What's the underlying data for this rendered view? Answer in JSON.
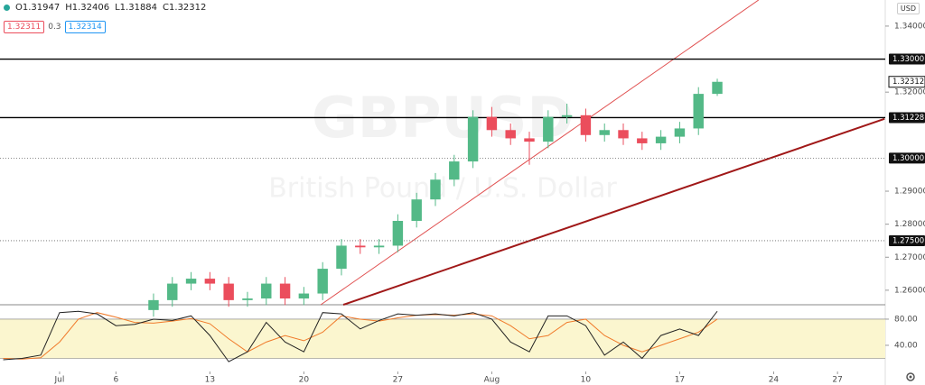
{
  "header": {
    "ohlc": [
      "O1.31947",
      "H1.32406",
      "L1.31884",
      "C1.32312"
    ],
    "sell": "1.32311",
    "spread": "0.3",
    "buy": "1.32314"
  },
  "currency": "USD",
  "chart_data": [
    {
      "type": "candlestick",
      "symbol": "GBPUSD",
      "description": "British Pound / U.S. Dollar",
      "x": [
        5,
        6,
        7,
        8,
        9,
        10,
        11,
        12,
        13,
        14,
        15,
        16,
        17,
        18,
        19,
        20,
        21,
        22,
        23,
        24,
        25,
        26,
        27,
        28,
        29,
        30,
        31,
        32,
        33,
        34,
        35
      ],
      "open": [
        1.254,
        1.257,
        1.262,
        1.2635,
        1.262,
        1.257,
        1.2575,
        1.262,
        1.2575,
        1.259,
        1.2665,
        1.2735,
        1.273,
        1.2735,
        1.281,
        1.2875,
        1.2935,
        1.299,
        1.3125,
        1.3085,
        1.306,
        1.305,
        1.3125,
        1.313,
        1.307,
        1.3085,
        1.306,
        1.3045,
        1.3065,
        1.309,
        1.31947
      ],
      "high": [
        1.259,
        1.264,
        1.2655,
        1.2655,
        1.264,
        1.2595,
        1.264,
        1.264,
        1.261,
        1.2685,
        1.2755,
        1.2755,
        1.2755,
        1.283,
        1.2895,
        1.2955,
        1.301,
        1.3145,
        1.3155,
        1.3105,
        1.308,
        1.3145,
        1.3165,
        1.315,
        1.3105,
        1.3105,
        1.308,
        1.3085,
        1.311,
        1.3215,
        1.32406
      ],
      "low": [
        1.252,
        1.255,
        1.26,
        1.26,
        1.255,
        1.255,
        1.2555,
        1.2555,
        1.2555,
        1.257,
        1.2645,
        1.271,
        1.271,
        1.2715,
        1.279,
        1.2855,
        1.2915,
        1.297,
        1.3065,
        1.304,
        1.298,
        1.303,
        1.3105,
        1.305,
        1.305,
        1.304,
        1.3025,
        1.3025,
        1.3045,
        1.307,
        1.31884
      ],
      "close": [
        1.257,
        1.262,
        1.2635,
        1.262,
        1.257,
        1.2575,
        1.262,
        1.2575,
        1.259,
        1.2665,
        1.2735,
        1.273,
        1.2735,
        1.281,
        1.2875,
        1.2935,
        1.299,
        1.3125,
        1.3085,
        1.306,
        1.305,
        1.3125,
        1.313,
        1.307,
        1.3085,
        1.306,
        1.3045,
        1.3065,
        1.309,
        1.31947,
        1.32312
      ],
      "up_color": "#53b987",
      "down_color": "#eb4d5c",
      "xlim": [
        -3.17,
        43.94
      ],
      "xticks": [
        {
          "value": 0,
          "label": "Jul"
        },
        {
          "value": 3,
          "label": "6"
        },
        {
          "value": 8,
          "label": "13"
        },
        {
          "value": 13,
          "label": "20"
        },
        {
          "value": 18,
          "label": "27"
        },
        {
          "value": 23,
          "label": "Aug"
        },
        {
          "value": 28,
          "label": "10"
        },
        {
          "value": 33,
          "label": "17"
        },
        {
          "value": 38,
          "label": "24"
        },
        {
          "value": 41.4,
          "label": "27"
        }
      ],
      "ylim": [
        1.2556,
        1.3479
      ],
      "yticks": [
        {
          "value": 1.34,
          "label": "1.34000"
        },
        {
          "value": 1.32,
          "label": "1.32000"
        },
        {
          "value": 1.29,
          "label": "1.29000"
        },
        {
          "value": 1.28,
          "label": "1.28000"
        },
        {
          "value": 1.27,
          "label": "1.27000"
        },
        {
          "value": 1.26,
          "label": "1.26000"
        }
      ],
      "levels": [
        {
          "value": 1.33,
          "label": "1.33000",
          "style": "solid"
        },
        {
          "value": 1.31228,
          "label": "1.31228",
          "style": "solid"
        },
        {
          "value": 1.3,
          "label": "1.30000",
          "style": "dotted"
        },
        {
          "value": 1.275,
          "label": "1.27500",
          "style": "dotted"
        }
      ],
      "last_price": {
        "value": 1.32312,
        "label": "1.32312"
      },
      "trendlines": [
        {
          "x": [
            13.9,
            37.2
          ],
          "y": [
            1.2556,
            1.3479
          ],
          "color": "#e05050",
          "width": 1
        },
        {
          "x": [
            15.1,
            43.9
          ],
          "y": [
            1.2556,
            1.3119
          ],
          "color": "#a01818",
          "width": 2
        }
      ]
    },
    {
      "type": "line",
      "x": [
        -3,
        -2,
        -1,
        0,
        1,
        2,
        3,
        4,
        5,
        6,
        7,
        8,
        9,
        10,
        11,
        12,
        13,
        14,
        15,
        16,
        17,
        18,
        19,
        20,
        21,
        22,
        23,
        24,
        25,
        26,
        27,
        28,
        29,
        30,
        31,
        32,
        33,
        34,
        35
      ],
      "series": [
        {
          "color": "#222222",
          "values": [
            18,
            20,
            25,
            90,
            92,
            88,
            70,
            72,
            80,
            78,
            85,
            55,
            15,
            30,
            75,
            45,
            30,
            90,
            88,
            65,
            78,
            88,
            86,
            88,
            85,
            90,
            80,
            45,
            30,
            85,
            85,
            70,
            25,
            45,
            20,
            55,
            65,
            55,
            92
          ]
        },
        {
          "color": "#f07a2a",
          "values": [
            20,
            19,
            21,
            45,
            80,
            90,
            83,
            75,
            74,
            77,
            81,
            73,
            50,
            30,
            45,
            55,
            47,
            60,
            85,
            80,
            77,
            82,
            86,
            87,
            86,
            88,
            85,
            70,
            50,
            55,
            75,
            80,
            55,
            40,
            30,
            40,
            50,
            60,
            80
          ]
        }
      ],
      "xlim": [
        -3.17,
        43.94
      ],
      "ylim": [
        0,
        102
      ],
      "yticks": [
        {
          "value": 80,
          "label": "80.00"
        },
        {
          "value": 40,
          "label": "40.00"
        }
      ],
      "band": [
        20,
        80
      ],
      "band_color": "#fbf6cf"
    }
  ]
}
